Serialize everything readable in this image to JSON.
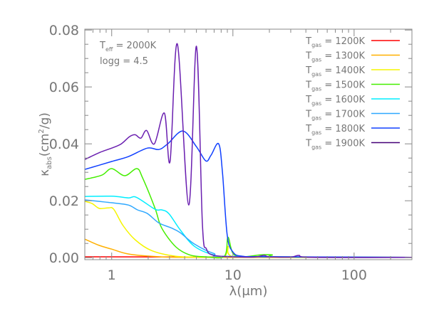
{
  "chart_data": {
    "type": "line",
    "xlabel": "λ(μm)",
    "ylabel": {
      "main": "κ",
      "sub": "abs",
      "rest": "(cm",
      "sup": "2",
      "end": "/g)"
    },
    "xscale": "log",
    "xlim": [
      0.6,
      300
    ],
    "ylim": [
      -0.0007,
      0.0803
    ],
    "xticks": [
      {
        "v": 1,
        "label": "1"
      },
      {
        "v": 10,
        "label": "10"
      },
      {
        "v": 100,
        "label": "100"
      }
    ],
    "yticks": [
      {
        "v": 0,
        "label": "0.00"
      },
      {
        "v": 0.02,
        "label": "0.02"
      },
      {
        "v": 0.04,
        "label": "0.04"
      },
      {
        "v": 0.06,
        "label": "0.06"
      },
      {
        "v": 0.08,
        "label": "0.08"
      }
    ],
    "grid": false,
    "legend_position": "top-right",
    "annotations": [
      {
        "main": "T",
        "sub": "eff",
        "rest": " = 2000K"
      },
      {
        "main": "logg = 4.5",
        "sub": "",
        "rest": ""
      }
    ],
    "series": [
      {
        "name": "1200K",
        "color": "#ff0000",
        "points": [
          [
            0.6,
            0.0003
          ],
          [
            300,
            0.0001
          ]
        ]
      },
      {
        "name": "1300K",
        "color": "#ffb000",
        "points": [
          [
            0.6,
            0.0065
          ],
          [
            0.79,
            0.0043
          ],
          [
            1.0,
            0.003
          ],
          [
            1.37,
            0.0013
          ],
          [
            2.3,
            0.0004
          ],
          [
            5,
            0.0001
          ],
          [
            300,
            0.0001
          ]
        ]
      },
      {
        "name": "1400K",
        "color": "#f5f500",
        "points": [
          [
            0.6,
            0.0198
          ],
          [
            0.69,
            0.019
          ],
          [
            0.79,
            0.0173
          ],
          [
            0.94,
            0.0175
          ],
          [
            1.04,
            0.017
          ],
          [
            1.24,
            0.0113
          ],
          [
            1.56,
            0.0063
          ],
          [
            2.13,
            0.0025
          ],
          [
            3.38,
            0.0005
          ],
          [
            6,
            0.0002
          ],
          [
            8.5,
            0.0004
          ],
          [
            9.1,
            0.004
          ],
          [
            9.8,
            0.0005
          ],
          [
            20,
            0.0003
          ],
          [
            300,
            0.0001
          ]
        ]
      },
      {
        "name": "1500K",
        "color": "#44ee00",
        "points": [
          [
            0.6,
            0.0275
          ],
          [
            0.83,
            0.029
          ],
          [
            1.0,
            0.0313
          ],
          [
            1.28,
            0.0288
          ],
          [
            1.61,
            0.0313
          ],
          [
            1.8,
            0.028
          ],
          [
            2.28,
            0.0173
          ],
          [
            2.58,
            0.0105
          ],
          [
            3.38,
            0.0038
          ],
          [
            4.44,
            0.0009
          ],
          [
            6,
            0.0003
          ],
          [
            8.5,
            0.0005
          ],
          [
            9.1,
            0.0072
          ],
          [
            10,
            0.0015
          ],
          [
            12,
            0.0003
          ],
          [
            17,
            0.001
          ],
          [
            21,
            0.001
          ],
          [
            25,
            0.0002
          ],
          [
            300,
            0.0001
          ]
        ]
      },
      {
        "name": "1600K",
        "color": "#00eeff",
        "points": [
          [
            0.6,
            0.0215
          ],
          [
            1.0,
            0.0216
          ],
          [
            1.37,
            0.021
          ],
          [
            1.6,
            0.0212
          ],
          [
            2.28,
            0.017
          ],
          [
            2.58,
            0.0168
          ],
          [
            2.96,
            0.0155
          ],
          [
            3.67,
            0.0098
          ],
          [
            4.81,
            0.004
          ],
          [
            6.93,
            0.001
          ],
          [
            10,
            0.0004
          ],
          [
            300,
            0.0001
          ]
        ]
      },
      {
        "name": "1700K",
        "color": "#2fa8ff",
        "points": [
          [
            0.6,
            0.0203
          ],
          [
            1.0,
            0.0193
          ],
          [
            1.37,
            0.0185
          ],
          [
            1.63,
            0.0168
          ],
          [
            1.97,
            0.0155
          ],
          [
            2.45,
            0.0122
          ],
          [
            3.08,
            0.0105
          ],
          [
            3.67,
            0.0088
          ],
          [
            4.81,
            0.0048
          ],
          [
            6.93,
            0.0015
          ],
          [
            10,
            0.0004
          ],
          [
            300,
            0.0001
          ]
        ]
      },
      {
        "name": "1800K",
        "color": "#1040ff",
        "points": [
          [
            0.6,
            0.031
          ],
          [
            1,
            0.0338
          ],
          [
            1.37,
            0.0355
          ],
          [
            1.97,
            0.0385
          ],
          [
            2.45,
            0.038
          ],
          [
            2.9,
            0.04
          ],
          [
            3.87,
            0.0445
          ],
          [
            5.0,
            0.039
          ],
          [
            5.98,
            0.034
          ],
          [
            6.6,
            0.036
          ],
          [
            7.63,
            0.04
          ],
          [
            8.2,
            0.03
          ],
          [
            8.97,
            0.008
          ],
          [
            10,
            0.002
          ],
          [
            12,
            0.0005
          ],
          [
            20,
            0.0003
          ],
          [
            300,
            0.0001
          ]
        ]
      },
      {
        "name": "1900K",
        "color": "#6a1fb0",
        "legend_color": "#440077",
        "points": [
          [
            0.6,
            0.0345
          ],
          [
            0.8,
            0.037
          ],
          [
            1.0,
            0.0385
          ],
          [
            1.2,
            0.04
          ],
          [
            1.4,
            0.0425
          ],
          [
            1.56,
            0.0432
          ],
          [
            1.74,
            0.042
          ],
          [
            1.94,
            0.0447
          ],
          [
            2.25,
            0.04
          ],
          [
            2.72,
            0.0508
          ],
          [
            3.03,
            0.0338
          ],
          [
            3.48,
            0.0751
          ],
          [
            4.32,
            0.0185
          ],
          [
            5.0,
            0.0743
          ],
          [
            5.6,
            0.012
          ],
          [
            6.06,
            0.003
          ],
          [
            7,
            0.0008
          ],
          [
            10,
            0.0003
          ],
          [
            15,
            0.0002
          ],
          [
            18,
            0.0008
          ],
          [
            20,
            0.0003
          ],
          [
            30,
            0.0002
          ],
          [
            35,
            0.0008
          ],
          [
            45,
            0.0001
          ],
          [
            300,
            0.0001
          ]
        ]
      }
    ],
    "legend_prefix": {
      "main": "T",
      "sub": "gas",
      "eq": "="
    }
  }
}
